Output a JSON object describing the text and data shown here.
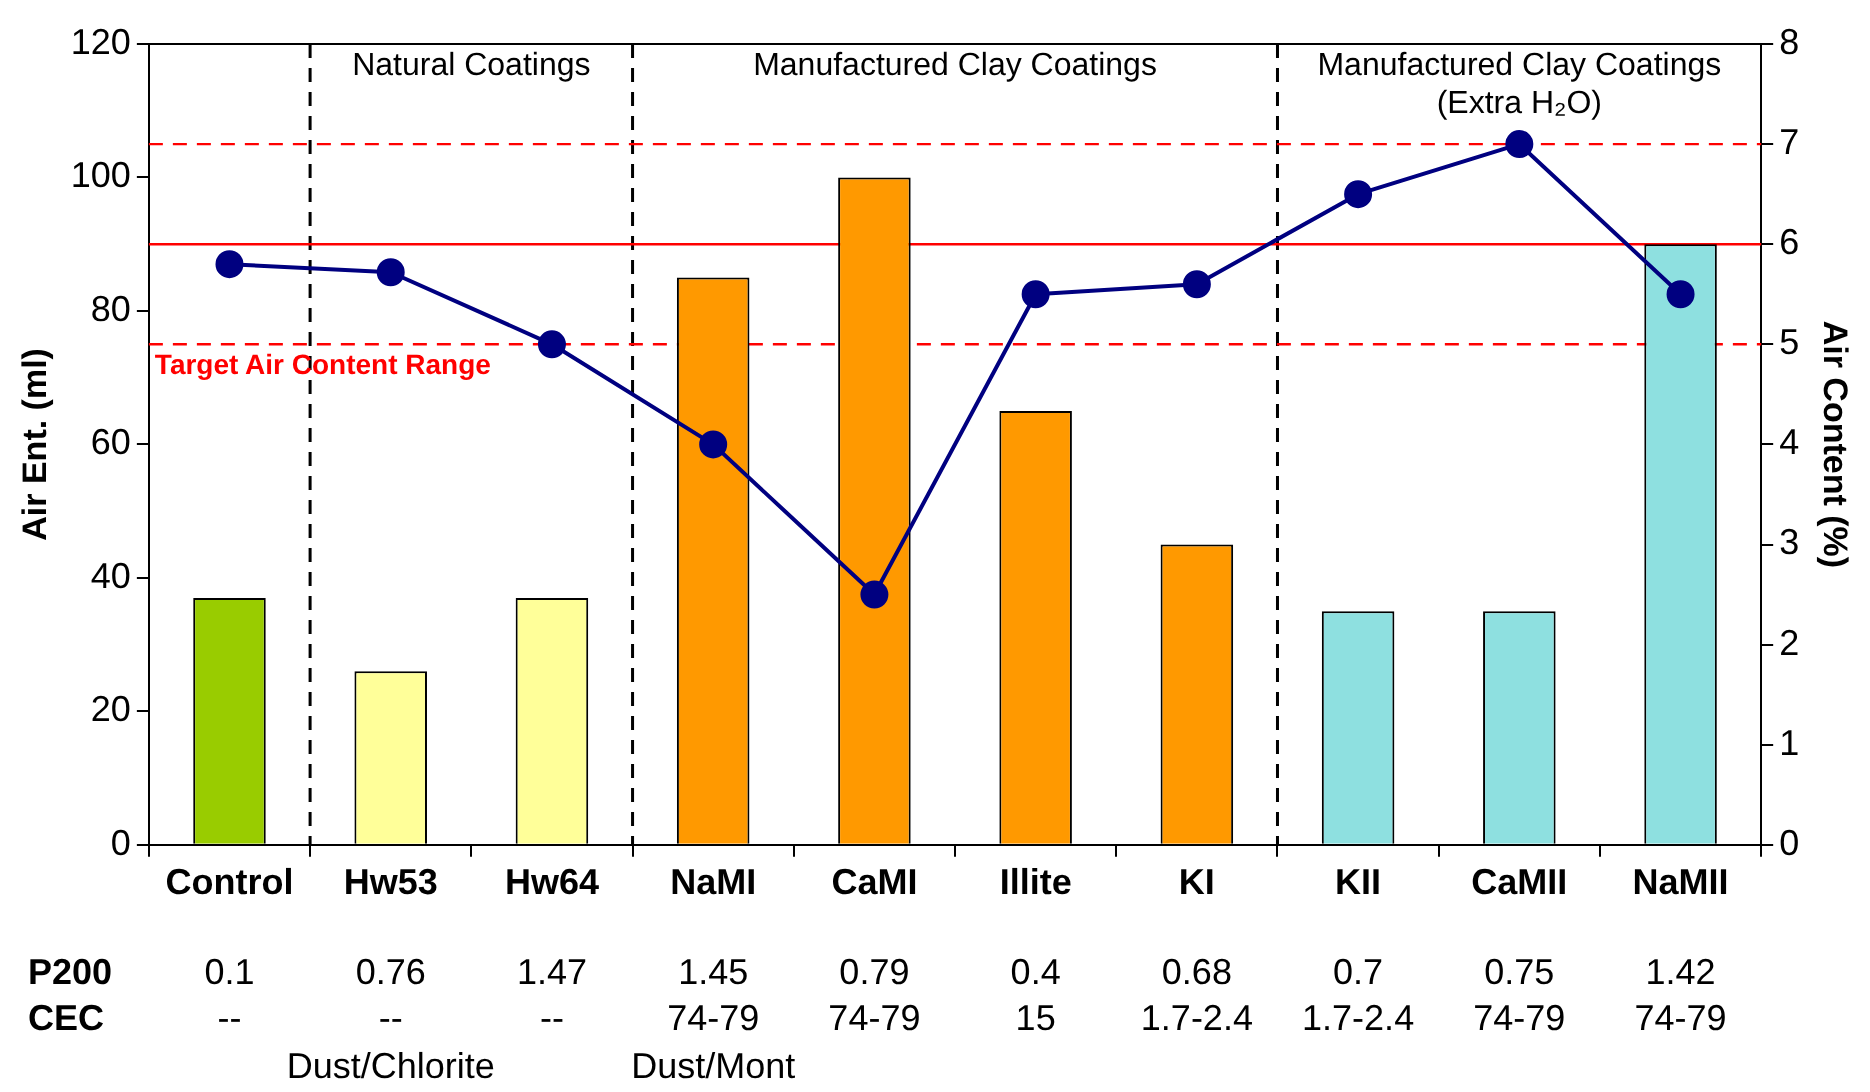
{
  "chart_data": {
    "type": "bar",
    "categories": [
      "Control",
      "Hw53",
      "Hw64",
      "NaMI",
      "CaMI",
      "Illite",
      "KI",
      "KII",
      "CaMII",
      "NaMII"
    ],
    "series": [
      {
        "colors": [
          "#99cc00",
          "#ffff99",
          "#ffff99",
          "#ff9900",
          "#ff9900",
          "#ff9900",
          "#ff9900",
          "#8ee0e0",
          "#8ee0e0",
          "#8ee0e0"
        ],
        "values": [
          37,
          26,
          37,
          85,
          100,
          65,
          45,
          35,
          35,
          90
        ]
      },
      {
        "type": "line",
        "axis": "y2",
        "color": "#000080",
        "values": [
          5.8,
          5.72,
          5.0,
          4.0,
          2.5,
          5.5,
          5.6,
          6.5,
          7.0,
          5.5
        ]
      }
    ],
    "ylabel": "Air Ent. (ml)",
    "y2label": "Air Content (%)",
    "ylim": [
      0,
      120
    ],
    "yticks": [
      0,
      20,
      40,
      60,
      80,
      100,
      120
    ],
    "y2lim": [
      0,
      8
    ],
    "y2ticks": [
      0,
      1,
      2,
      3,
      4,
      5,
      6,
      7,
      8
    ],
    "grid": false,
    "legend": false,
    "marker": "circle",
    "ref_lines": [
      {
        "axis": "y2",
        "value": 7,
        "color": "#ff0000",
        "line_style": "dashed"
      },
      {
        "axis": "y2",
        "value": 6,
        "color": "#ff0000",
        "line_style": "solid"
      },
      {
        "axis": "y2",
        "value": 5,
        "color": "#ff0000",
        "line_style": "dashed",
        "label": "Target Air Content Range"
      }
    ],
    "annotations": [
      "Natural Coatings",
      "Manufactured Clay Coatings",
      "Manufactured Clay Coatings (Extra H₂O)",
      "P200",
      "CEC",
      "0.1",
      "0.76",
      "1.47",
      "1.45",
      "0.79",
      "0.4",
      "0.68",
      "0.7",
      "0.75",
      "1.42",
      "--",
      "--",
      "--",
      "74-79",
      "74-79",
      "15",
      "1.7-2.4",
      "1.7-2.4",
      "74-79",
      "74-79",
      "Dust/Chlorite",
      "Dust/Mont"
    ]
  }
}
